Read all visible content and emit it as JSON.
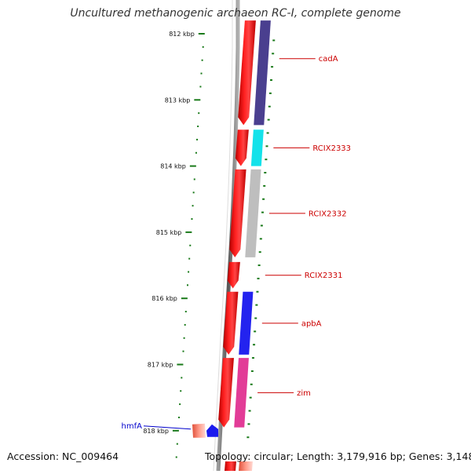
{
  "title": "Uncultured methanogenic archaeon RC-I, complete genome",
  "footer": {
    "accession": "Accession: NC_009464",
    "topology": "Topology: circular;",
    "length": "Length: 3,179,916 bp;",
    "genes": "Genes: 3,148"
  },
  "ticks": [
    {
      "label": "812 kbp",
      "kbp": 812
    },
    {
      "label": "813 kbp",
      "kbp": 813
    },
    {
      "label": "814 kbp",
      "kbp": 814
    },
    {
      "label": "815 kbp",
      "kbp": 815
    },
    {
      "label": "816 kbp",
      "kbp": 816
    },
    {
      "label": "817 kbp",
      "kbp": 817
    },
    {
      "label": "818 kbp",
      "kbp": 818
    }
  ],
  "genes": [
    {
      "name": "cadA",
      "color": "#cc0000",
      "fill": "#3b2f86",
      "kbp_start": 811.8,
      "kbp_end": 813.38
    },
    {
      "name": "RCIX2333",
      "color": "#cc0000",
      "fill": "#00e0e8",
      "kbp_start": 813.45,
      "kbp_end": 814.0
    },
    {
      "name": "RCIX2332",
      "color": "#cc0000",
      "fill": "#b8b8b8",
      "kbp_start": 814.05,
      "kbp_end": 815.38
    },
    {
      "name": "RCIX2331",
      "color": "#cc0000",
      "fill": "#ffffff",
      "kbp_start": 815.45,
      "kbp_end": 815.85
    },
    {
      "name": "apbA",
      "color": "#cc0000",
      "fill": "#1010ee",
      "kbp_start": 815.9,
      "kbp_end": 816.85
    },
    {
      "name": "zim",
      "color": "#cc0000",
      "fill": "#e02b8e",
      "kbp_start": 816.9,
      "kbp_end": 817.95
    },
    {
      "name": "hmfA",
      "color": "#0000cc",
      "fill": "#1a1aee",
      "kbp_start": 818.0,
      "kbp_end": 818.2
    }
  ],
  "colors": {
    "forward_strand": "#ff1111",
    "ruler_dots": "#1a7a1a",
    "backbone": "#888888",
    "label_forward": "#cc0000",
    "label_reverse": "#0000cc"
  }
}
